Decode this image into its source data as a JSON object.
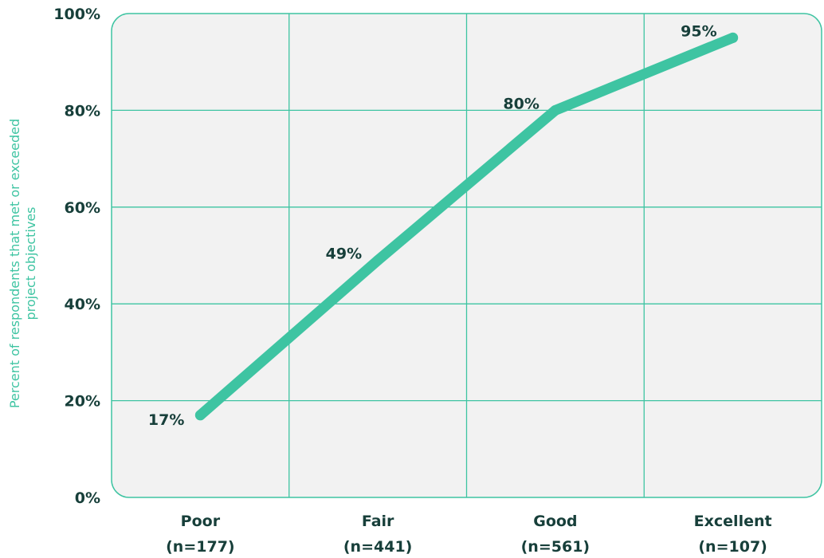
{
  "chart_data": {
    "type": "line",
    "categories": [
      "Poor",
      "Fair",
      "Good",
      "Excellent"
    ],
    "category_counts": [
      "(n=177)",
      "(n=441)",
      "(n=561)",
      "(n=107)"
    ],
    "series": [
      {
        "values": [
          17,
          49,
          80,
          95
        ],
        "data_labels": [
          "17%",
          "49%",
          "80%",
          "95%"
        ]
      }
    ],
    "title": "",
    "xlabel": "",
    "ylabel_lines": [
      "Percent of respondents that met or exceeded",
      "project objectives"
    ],
    "ylim": [
      0,
      100
    ],
    "yticks": [
      0,
      20,
      40,
      60,
      80,
      100
    ],
    "ytick_labels": [
      "0%",
      "20%",
      "40%",
      "60%",
      "80%",
      "100%"
    ],
    "grid": true,
    "legend": "none",
    "colors": {
      "line": "#3ec4a2",
      "grid": "#3ec4a2",
      "plot_background": "#f2f2f2",
      "text": "#173f3a",
      "axis_title": "#3ec4a2"
    }
  }
}
